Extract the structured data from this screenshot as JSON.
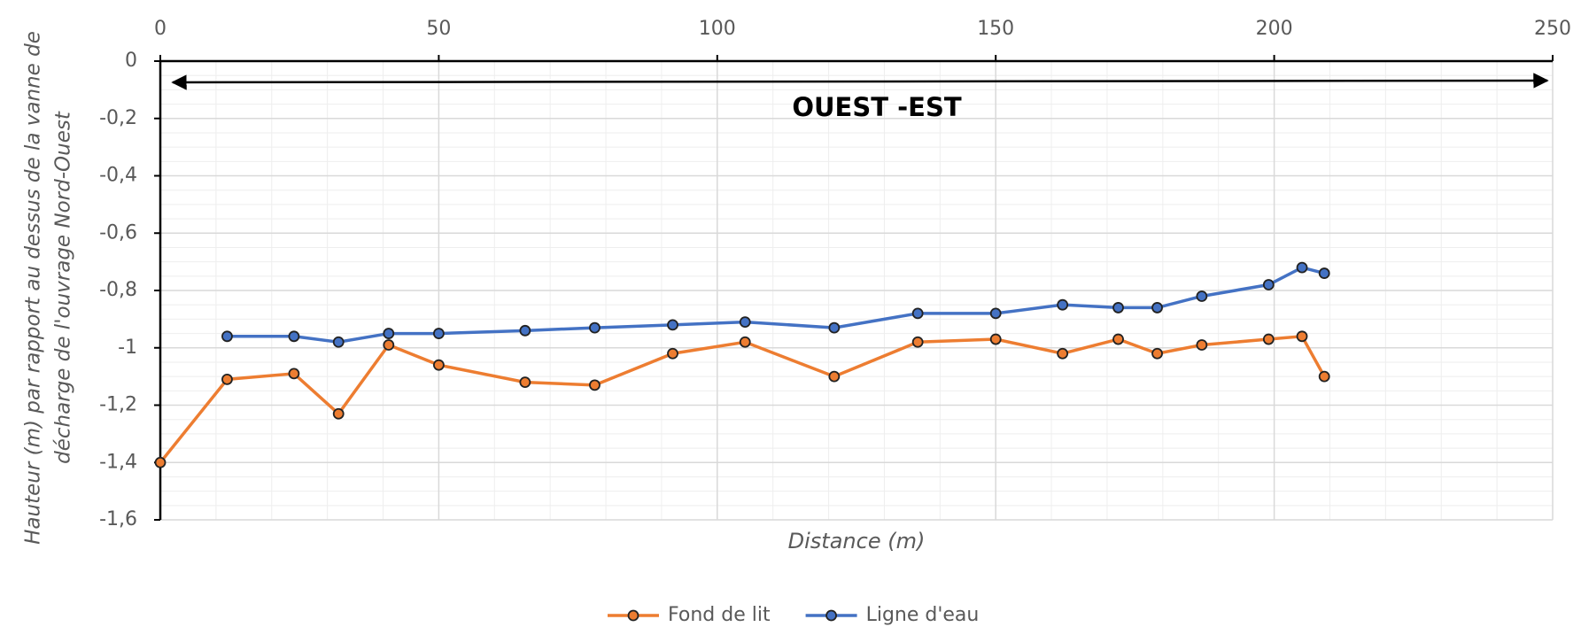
{
  "chart_data": {
    "type": "line",
    "annotation": "OUEST -EST",
    "xlabel": "Distance (m)",
    "ylabel": [
      "Hauteur (m) par rapport au dessus de la vanne de",
      "décharge de l'ouvrage Nord-Ouest"
    ],
    "x": [
      0,
      12,
      24,
      32,
      41,
      50,
      65.5,
      78,
      92,
      105,
      121,
      136,
      150,
      162,
      172,
      179,
      187,
      199,
      205,
      209
    ],
    "series": [
      {
        "name": "Fond de lit",
        "color": "#ED7D31",
        "values": [
          -1.4,
          -1.11,
          -1.09,
          -1.23,
          -0.99,
          -1.06,
          -1.12,
          -1.13,
          -1.02,
          -0.98,
          -1.1,
          -0.98,
          -0.97,
          -1.02,
          -0.97,
          -1.02,
          -0.99,
          -0.97,
          -0.96,
          -1.1
        ]
      },
      {
        "name": "Ligne d'eau",
        "color": "#4472C4",
        "values": [
          null,
          -0.96,
          -0.96,
          -0.98,
          -0.95,
          -0.95,
          -0.94,
          -0.93,
          -0.92,
          -0.91,
          -0.93,
          -0.88,
          -0.88,
          -0.85,
          -0.86,
          -0.86,
          -0.82,
          -0.78,
          -0.72,
          -0.74
        ]
      }
    ],
    "xlim": [
      0,
      250
    ],
    "xticks": [
      0,
      50,
      100,
      150,
      200,
      250
    ],
    "ylim": [
      -1.6,
      0
    ],
    "yticks": [
      0,
      {
        "value": -0.2,
        "label": "-0,2"
      },
      {
        "value": -0.4,
        "label": "-0,4"
      },
      {
        "value": -0.6,
        "label": "-0,6"
      },
      {
        "value": -0.8,
        "label": "-0,8"
      },
      -1,
      {
        "value": -1.2,
        "label": "-1,2"
      },
      {
        "value": -1.4,
        "label": "-1,4"
      },
      {
        "value": -1.6,
        "label": "-1,6"
      }
    ],
    "grid": true,
    "legend": "bottom"
  }
}
